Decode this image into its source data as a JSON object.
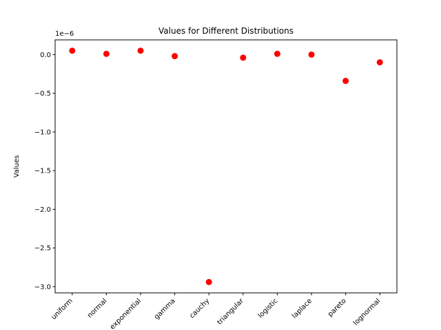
{
  "chart_data": {
    "type": "scatter",
    "title": "Values for Different Distributions",
    "xlabel": "",
    "ylabel": "Values",
    "y_multiplier_label": "1e−6",
    "categories": [
      "uniform",
      "normal",
      "exponential",
      "gamma",
      "cauchy",
      "triangular",
      "logistic",
      "laplace",
      "pareto",
      "lognormal"
    ],
    "values": [
      0.05,
      0.01,
      0.05,
      -0.02,
      -2.94,
      -0.04,
      0.01,
      0.0,
      -0.34,
      -0.1
    ],
    "ylim": [
      -3.08,
      0.19
    ],
    "yticks": [
      0.0,
      -0.5,
      -1.0,
      -1.5,
      -2.0,
      -2.5,
      -3.0
    ],
    "ytick_labels": [
      "0.0",
      "−0.5",
      "−1.0",
      "−1.5",
      "−2.0",
      "−2.5",
      "−3.0"
    ],
    "grid": false,
    "marker_color": "#ff0000"
  }
}
